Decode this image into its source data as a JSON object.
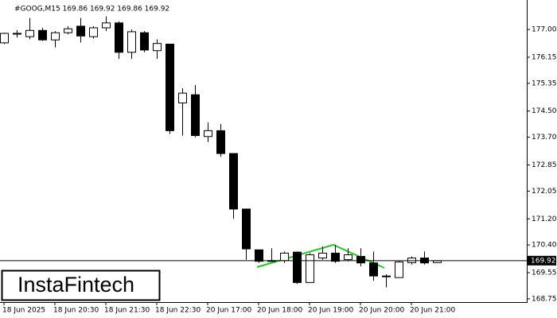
{
  "chart_data": {
    "type": "candlestick",
    "title": "#GOOG,M15  169.86 169.92 169.86 169.92",
    "watermark": "InstaFintech",
    "categories": [
      "18 Jun 2025",
      null,
      null,
      null,
      "18 Jun 20:30",
      null,
      null,
      null,
      "18 Jun 21:30",
      null,
      null,
      null,
      "18 Jun 22:30",
      null,
      null,
      null,
      "20 Jun 17:00",
      null,
      null,
      null,
      "20 Jun 18:00",
      null,
      null,
      null,
      "20 Jun 19:00",
      null,
      null,
      null,
      "20 Jun 20:00",
      null,
      null,
      null,
      "20 Jun 21:00",
      null,
      null
    ],
    "open": [
      176.59,
      176.86,
      176.78,
      176.97,
      176.68,
      176.9,
      177.1,
      176.78,
      177.05,
      177.2,
      176.3,
      176.9,
      176.35,
      176.55,
      174.75,
      175.0,
      173.72,
      173.9,
      173.2,
      171.5,
      170.25,
      169.9,
      169.92,
      170.18,
      169.25,
      170.0,
      170.15,
      169.95,
      170.05,
      169.85,
      169.45,
      169.4,
      169.86,
      170.0,
      169.86
    ],
    "high": [
      176.9,
      176.98,
      177.35,
      177.05,
      176.95,
      177.1,
      177.35,
      177.1,
      177.4,
      177.25,
      177.0,
      176.95,
      176.7,
      176.55,
      175.2,
      175.3,
      174.15,
      174.1,
      173.2,
      171.5,
      170.25,
      170.3,
      170.2,
      170.2,
      170.15,
      170.35,
      170.4,
      170.3,
      170.3,
      170.2,
      169.5,
      169.9,
      170.05,
      170.2,
      169.92
    ],
    "low": [
      176.55,
      176.75,
      176.7,
      176.65,
      176.45,
      176.85,
      176.6,
      176.72,
      176.95,
      176.1,
      176.1,
      176.3,
      176.1,
      173.8,
      173.75,
      173.7,
      173.55,
      173.1,
      171.2,
      169.95,
      169.85,
      169.9,
      169.85,
      169.2,
      169.25,
      169.95,
      169.85,
      169.9,
      169.75,
      169.3,
      169.1,
      169.4,
      169.8,
      169.8,
      169.86
    ],
    "close": [
      176.88,
      176.88,
      176.97,
      176.68,
      176.9,
      177.02,
      176.8,
      177.05,
      177.2,
      176.3,
      176.93,
      176.37,
      176.57,
      173.9,
      175.05,
      173.75,
      173.9,
      173.2,
      171.5,
      170.28,
      169.9,
      169.92,
      170.15,
      169.25,
      170.1,
      170.15,
      169.9,
      170.1,
      169.85,
      169.45,
      169.45,
      169.88,
      170.0,
      169.85,
      169.92
    ],
    "up_color": "#ffffff",
    "down_color": "#000000",
    "current_price": 169.92,
    "ylim": [
      168.65,
      177.78
    ],
    "yticks": [
      {
        "value": 177,
        "label": "177.00"
      },
      {
        "value": 176.15,
        "label": "176.15"
      },
      {
        "value": 175.35,
        "label": "175.35"
      },
      {
        "value": 174.5,
        "label": "174.50"
      },
      {
        "value": 173.7,
        "label": "173.70"
      },
      {
        "value": 172.85,
        "label": "172.85"
      },
      {
        "value": 172.05,
        "label": "172.05"
      },
      {
        "value": 171.2,
        "label": "171.20"
      },
      {
        "value": 170.4,
        "label": "170.40"
      },
      {
        "value": 169.55,
        "label": "169.55"
      },
      {
        "value": 168.75,
        "label": "168.75"
      }
    ]
  }
}
